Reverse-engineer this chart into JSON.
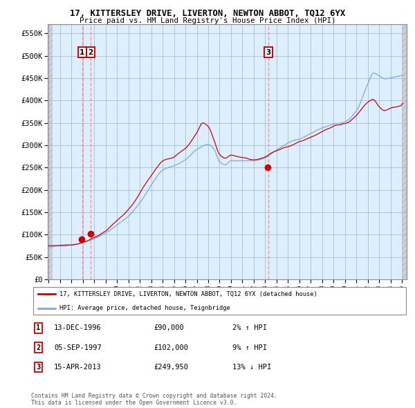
{
  "title": "17, KITTERSLEY DRIVE, LIVERTON, NEWTON ABBOT, TQ12 6YX",
  "subtitle": "Price paid vs. HM Land Registry's House Price Index (HPI)",
  "legend_line1": "17, KITTERSLEY DRIVE, LIVERTON, NEWTON ABBOT, TQ12 6YX (detached house)",
  "legend_line2": "HPI: Average price, detached house, Teignbridge",
  "sale1_date": "13-DEC-1996",
  "sale1_price": 90000,
  "sale1_pct": "2% ↑ HPI",
  "sale2_date": "05-SEP-1997",
  "sale2_price": 102000,
  "sale2_pct": "9% ↑ HPI",
  "sale3_date": "15-APR-2013",
  "sale3_price": 249950,
  "sale3_pct": "13% ↓ HPI",
  "red_color": "#cc0000",
  "blue_color": "#7aaadd",
  "bg_color": "#ddeeff",
  "grid_color": "#aabbcc",
  "vline_color": "#ff8888",
  "sale1_year": 1996.95,
  "sale2_year": 1997.67,
  "sale3_year": 2013.29,
  "footer": "Contains HM Land Registry data © Crown copyright and database right 2024.\nThis data is licensed under the Open Government Licence v3.0.",
  "ylim_max": 570000,
  "ylim_min": 0,
  "hpi_keypoints": [
    [
      1994.0,
      72000
    ],
    [
      1995.0,
      74000
    ],
    [
      1996.0,
      78000
    ],
    [
      1997.0,
      85000
    ],
    [
      1998.0,
      95000
    ],
    [
      1999.0,
      108000
    ],
    [
      2000.0,
      125000
    ],
    [
      2001.0,
      145000
    ],
    [
      2002.0,
      175000
    ],
    [
      2003.0,
      215000
    ],
    [
      2004.0,
      248000
    ],
    [
      2005.0,
      258000
    ],
    [
      2006.0,
      272000
    ],
    [
      2007.0,
      295000
    ],
    [
      2008.0,
      305000
    ],
    [
      2008.5,
      295000
    ],
    [
      2009.0,
      265000
    ],
    [
      2009.5,
      258000
    ],
    [
      2010.0,
      268000
    ],
    [
      2011.0,
      268000
    ],
    [
      2012.0,
      265000
    ],
    [
      2013.0,
      272000
    ],
    [
      2014.0,
      290000
    ],
    [
      2015.0,
      305000
    ],
    [
      2016.0,
      315000
    ],
    [
      2017.0,
      328000
    ],
    [
      2018.0,
      340000
    ],
    [
      2019.0,
      348000
    ],
    [
      2020.0,
      352000
    ],
    [
      2021.0,
      375000
    ],
    [
      2022.0,
      435000
    ],
    [
      2022.5,
      460000
    ],
    [
      2023.0,
      455000
    ],
    [
      2023.5,
      448000
    ],
    [
      2024.0,
      450000
    ],
    [
      2024.5,
      452000
    ],
    [
      2025.0,
      455000
    ]
  ],
  "red_keypoints": [
    [
      1994.0,
      75000
    ],
    [
      1995.0,
      77000
    ],
    [
      1996.0,
      80000
    ],
    [
      1997.0,
      88000
    ],
    [
      1998.0,
      100000
    ],
    [
      1999.0,
      115000
    ],
    [
      2000.0,
      135000
    ],
    [
      2001.0,
      158000
    ],
    [
      2002.0,
      195000
    ],
    [
      2003.0,
      235000
    ],
    [
      2004.0,
      268000
    ],
    [
      2005.0,
      278000
    ],
    [
      2006.0,
      298000
    ],
    [
      2007.0,
      330000
    ],
    [
      2007.5,
      350000
    ],
    [
      2008.0,
      340000
    ],
    [
      2008.5,
      310000
    ],
    [
      2009.0,
      278000
    ],
    [
      2009.5,
      270000
    ],
    [
      2010.0,
      278000
    ],
    [
      2011.0,
      275000
    ],
    [
      2012.0,
      270000
    ],
    [
      2013.0,
      278000
    ],
    [
      2014.0,
      292000
    ],
    [
      2015.0,
      305000
    ],
    [
      2016.0,
      315000
    ],
    [
      2017.0,
      328000
    ],
    [
      2018.0,
      342000
    ],
    [
      2019.0,
      352000
    ],
    [
      2020.0,
      358000
    ],
    [
      2021.0,
      378000
    ],
    [
      2022.0,
      408000
    ],
    [
      2022.5,
      415000
    ],
    [
      2023.0,
      400000
    ],
    [
      2023.5,
      392000
    ],
    [
      2024.0,
      395000
    ],
    [
      2024.5,
      398000
    ],
    [
      2025.0,
      400000
    ]
  ]
}
